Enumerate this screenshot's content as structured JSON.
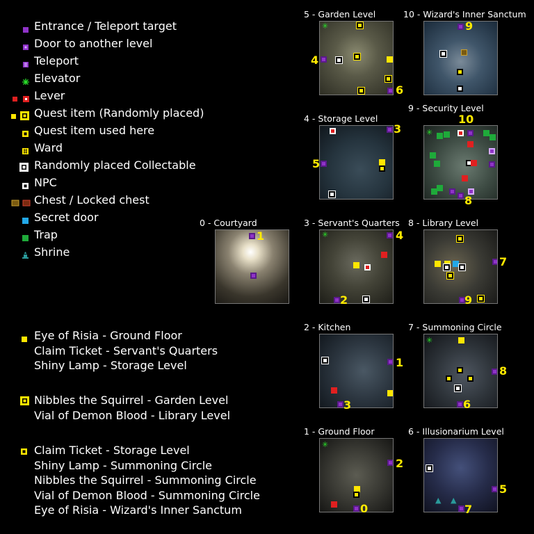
{
  "legend": [
    {
      "icon": "door-entrance-icon",
      "label": "Entrance / Teleport target"
    },
    {
      "icon": "door-level-icon",
      "label": "Door to another level"
    },
    {
      "icon": "teleport-icon",
      "label": "Teleport"
    },
    {
      "icon": "elevator-icon",
      "label": "Elevator"
    },
    {
      "icon": "lever-icon",
      "label": "Lever"
    },
    {
      "icon": "quest-item-icon",
      "label": "Quest item (Randomly placed)"
    },
    {
      "icon": "quest-item-used-icon",
      "label": "Quest item used here"
    },
    {
      "icon": "ward-icon",
      "label": "Ward"
    },
    {
      "icon": "collectable-icon",
      "label": "Randomly placed Collectable"
    },
    {
      "icon": "npc-icon",
      "label": "NPC"
    },
    {
      "icon": "chest-icon",
      "label": "Chest / Locked chest"
    },
    {
      "icon": "secret-door-icon",
      "label": "Secret door"
    },
    {
      "icon": "trap-icon",
      "label": "Trap"
    },
    {
      "icon": "shrine-icon",
      "label": "Shrine"
    }
  ],
  "quest_groups": [
    {
      "icon": "quest-item-icon",
      "lines": [
        "Eye of Risia - Ground Floor",
        "Claim Ticket - Servant's Quarters",
        "Shiny Lamp - Storage Level"
      ]
    },
    {
      "icon": "quest-item-icon-2",
      "lines": [
        "Nibbles the Squirrel - Garden Level",
        "Vial of Demon Blood - Library Level"
      ]
    },
    {
      "icon": "quest-item-used-icon",
      "lines": [
        "Claim Ticket - Storage Level",
        "Shiny Lamp - Summoning Circle",
        "Nibbles the Squirrel - Summoning Circle",
        "Vial of Demon Blood - Summoning Circle",
        "Eye of Risia - Wizard's Inner Sanctum"
      ]
    }
  ],
  "maps": {
    "l5": {
      "title": "5 - Garden Level",
      "nums": [
        "4",
        "6"
      ]
    },
    "l10": {
      "title": "10 - Wizard's Inner Sanctum",
      "nums": [
        "9"
      ]
    },
    "l4": {
      "title": "4 - Storage Level",
      "nums": [
        "3",
        "5"
      ]
    },
    "l9": {
      "title": "9 - Security Level",
      "nums": [
        "10",
        "8"
      ]
    },
    "l0": {
      "title": "0 - Courtyard",
      "nums": [
        "1"
      ]
    },
    "l3": {
      "title": "3 - Servant's Quarters",
      "nums": [
        "4",
        "2"
      ]
    },
    "l8": {
      "title": "8 - Library Level",
      "nums": [
        "7",
        "9"
      ]
    },
    "l2": {
      "title": "2 - Kitchen",
      "nums": [
        "1",
        "3"
      ]
    },
    "l7": {
      "title": "7 - Summoning Circle",
      "nums": [
        "8",
        "6"
      ]
    },
    "l1": {
      "title": "1 - Ground Floor",
      "nums": [
        "2",
        "0"
      ]
    },
    "l6": {
      "title": "6 - Illusionarium Level",
      "nums": [
        "5",
        "7"
      ]
    }
  },
  "colors": {
    "door": "#8f33c8",
    "quest": "#ffe600",
    "lever": "#e02020",
    "trap": "#1faa3a",
    "elevator": "#2ae02a",
    "secret": "#22a8e8",
    "number": "#ffea00"
  }
}
